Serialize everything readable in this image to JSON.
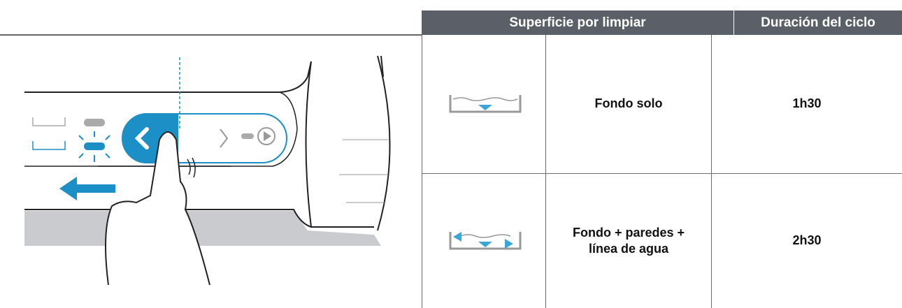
{
  "table": {
    "header": [
      "Superficie por limpiar",
      "Duración del ciclo"
    ],
    "rows": [
      [
        "Fondo solo",
        "1h30"
      ],
      [
        "Fondo + paredes + línea de agua",
        "2h30"
      ]
    ]
  }
}
